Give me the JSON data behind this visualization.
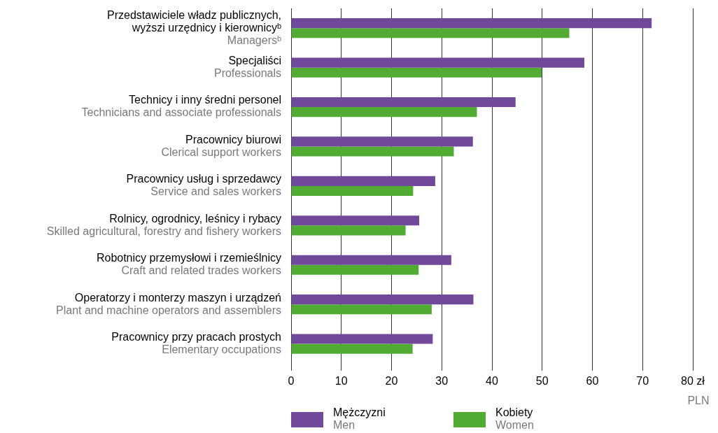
{
  "chart_data": {
    "type": "bar",
    "orientation": "horizontal",
    "categories": [
      "Przedstawiciele władz publicznych,\nwyższi urzędnicy i kierownicyᵇ\nManagersᵇ",
      "Specjaliści\nProfessionals",
      "Technicy i inny średni personel\nTechnicians and associate professionals",
      "Pracownicy biurowi\nClerical support workers",
      "Pracownicy usług i sprzedawcy\nService and sales workers",
      "Rolnicy, ogrodnicy, leśnicy i rybacy\nSkilled agricultural, forestry and fishery workers",
      "Robotnicy przemysłowi i rzemieślnicy\nCraft and related trades workers",
      "Operatorzy i monterzy maszyn i urządzeń\nPlant and machine operators and assemblers",
      "Pracownicy przy pracach prostych\nElementary occupations"
    ],
    "series": [
      {
        "name": "Mężczyzni\nMen",
        "color": "#71499a",
        "values": [
          71.8,
          58.4,
          44.7,
          36.2,
          28.7,
          25.5,
          31.9,
          36.3,
          28.2
        ]
      },
      {
        "name": "Kobiety\nWomen",
        "color": "#52ac33",
        "values": [
          55.4,
          49.9,
          37.0,
          32.4,
          24.3,
          22.8,
          25.4,
          28.0,
          24.2
        ]
      }
    ],
    "xlim": [
      0,
      80
    ],
    "xticks": [
      0,
      10,
      20,
      30,
      40,
      50,
      60,
      70,
      {
        "value": 80,
        "label": "80 zł"
      }
    ],
    "xlabel": "PLN",
    "grid": "x",
    "legend": "bottom"
  }
}
